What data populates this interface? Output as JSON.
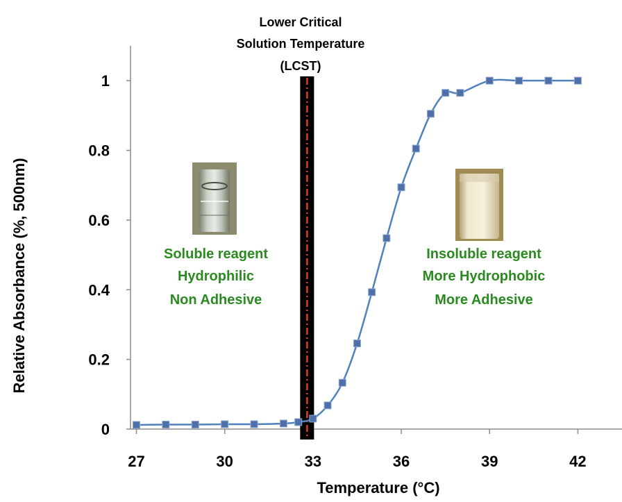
{
  "chart_data": {
    "type": "line",
    "xlabel": "Temperature (°C)",
    "ylabel": "Relative Absorbance (%, 500nm)",
    "xlim": [
      26.8,
      43.5
    ],
    "ylim": [
      0,
      1.1
    ],
    "x_ticks": [
      27,
      30,
      33,
      36,
      39,
      42
    ],
    "x_tick_labels": [
      "27",
      "30",
      "33",
      "36",
      "39",
      "42"
    ],
    "y_ticks": [
      0,
      0.2,
      0.4,
      0.6,
      0.8,
      1
    ],
    "y_tick_labels": [
      "0",
      "0.2",
      "0.4",
      "0.6",
      "0.8",
      "1"
    ],
    "grid": false,
    "series": [
      {
        "color": "#4f81bd",
        "marker_color": "#4f6fa8",
        "x": [
          27,
          28,
          29,
          30,
          31,
          32,
          32.5,
          33,
          33.5,
          34,
          34.5,
          35,
          35.5,
          36,
          36.5,
          37,
          37.5,
          38,
          39,
          40,
          41,
          42
        ],
        "y": [
          0.012,
          0.013,
          0.013,
          0.014,
          0.014,
          0.016,
          0.02,
          0.03,
          0.068,
          0.133,
          0.246,
          0.393,
          0.548,
          0.694,
          0.805,
          0.905,
          0.965,
          0.965,
          1.0,
          1.0,
          1.0,
          1.0
        ]
      }
    ],
    "lcst_marker": {
      "x": 32.8,
      "label_lines": [
        "Lower Critical",
        "Solution Temperature",
        "(LCST)"
      ],
      "bar_color": "#000000",
      "dash_color": "#e03a1f"
    },
    "annotations": {
      "left": {
        "lines": [
          "Soluble reagent",
          "Hydrophilic",
          "Non Adhesive"
        ],
        "color": "#2a8a1f",
        "image": "clear-vial-photo"
      },
      "right": {
        "lines": [
          "Insoluble reagent",
          "More Hydrophobic",
          "More Adhesive"
        ],
        "color": "#2a8a1f",
        "image": "cloudy-vial-photo"
      }
    }
  }
}
